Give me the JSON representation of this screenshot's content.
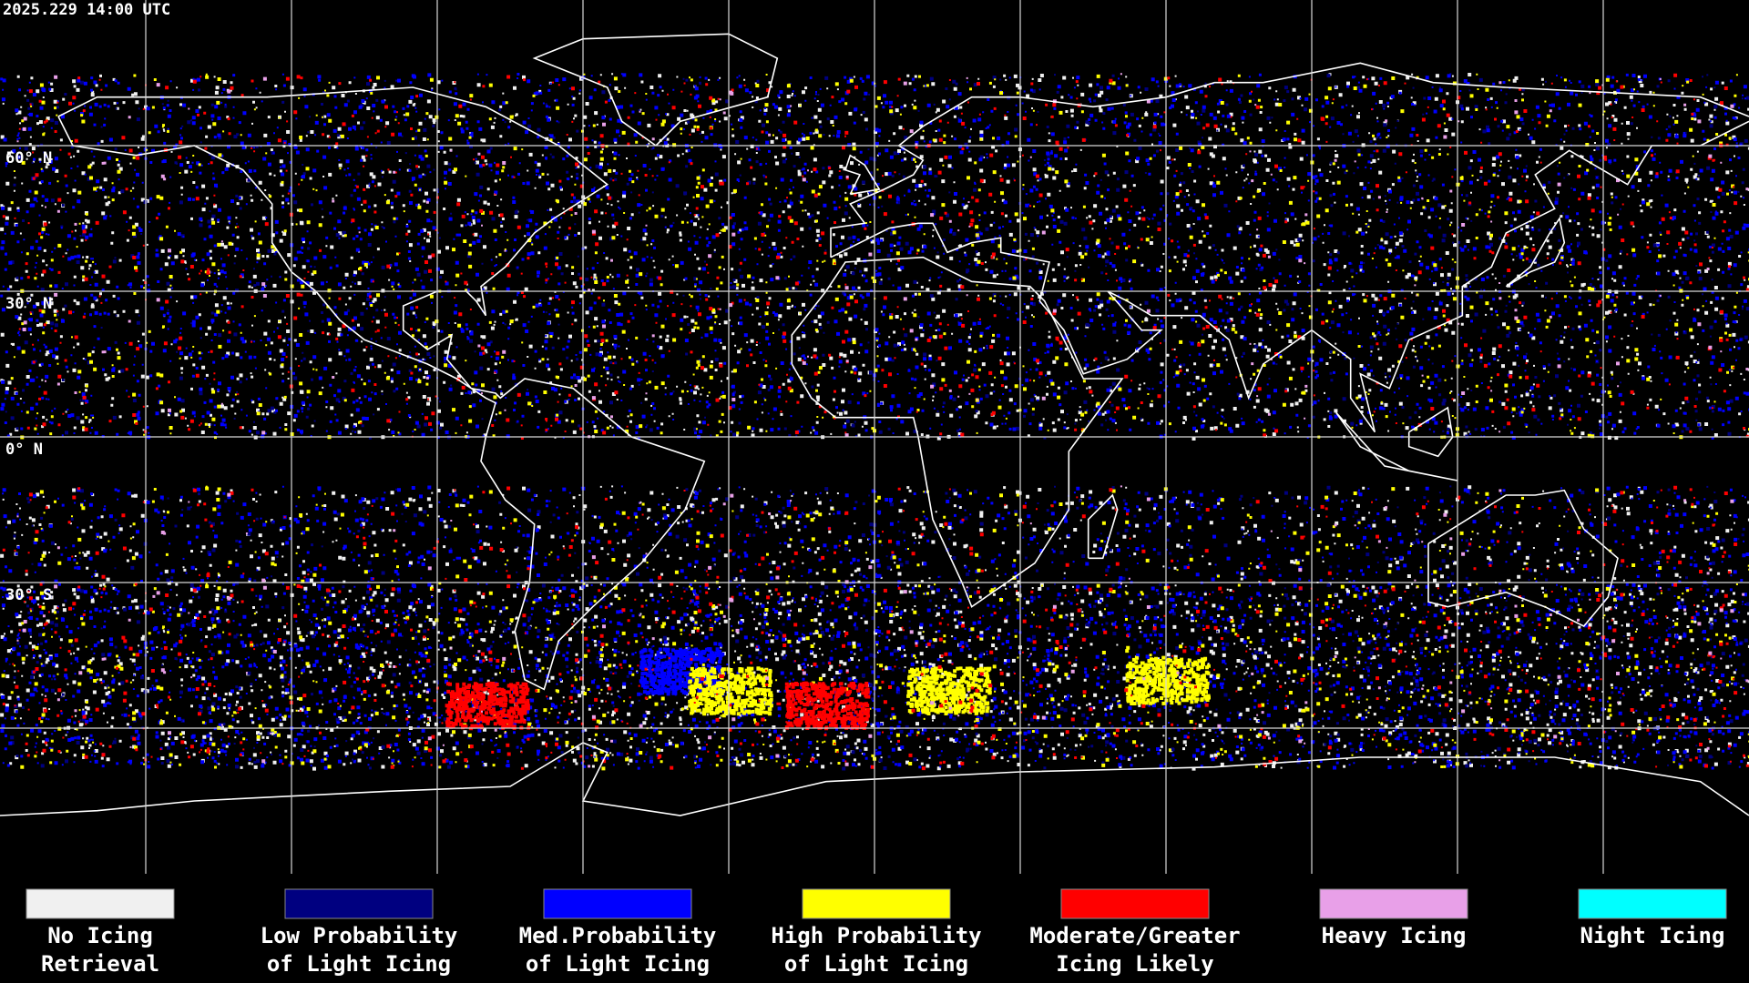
{
  "timestamp": "2025.229 14:00 UTC",
  "grid_labels": [
    "60° N",
    "30° N",
    "0° N",
    "30° S"
  ],
  "legend": [
    {
      "color": "#f0f0f0",
      "label_lines": [
        "No Icing",
        "Retrieval"
      ]
    },
    {
      "color": "#000080",
      "label_lines": [
        "Low Probability",
        "of Light Icing"
      ]
    },
    {
      "color": "#0000ff",
      "label_lines": [
        "Med.Probability",
        "of Light Icing"
      ]
    },
    {
      "color": "#ffff00",
      "label_lines": [
        "High Probability",
        "of Light Icing"
      ]
    },
    {
      "color": "#ff0000",
      "label_lines": [
        "Moderate/Greater",
        "Icing Likely"
      ]
    },
    {
      "color": "#e8a0e8",
      "label_lines": [
        "Heavy Icing"
      ]
    },
    {
      "color": "#00ffff",
      "label_lines": [
        "Night Icing"
      ]
    }
  ]
}
